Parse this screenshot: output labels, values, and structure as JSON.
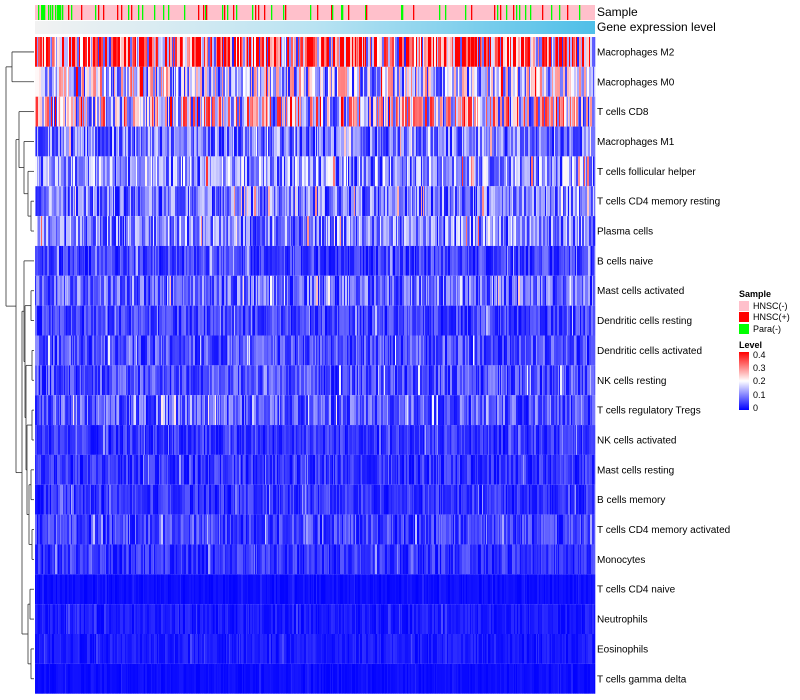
{
  "chart_data": {
    "type": "heatmap",
    "title": "",
    "annotation_tracks": [
      {
        "name": "Sample",
        "levels": [
          "HNSC(-)",
          "HNSC(+)",
          "Para(-)"
        ],
        "dominant": "HNSC(-)"
      },
      {
        "name": "Gene expression level",
        "gradient": "low-to-high"
      }
    ],
    "rows": [
      "Macrophages M2",
      "Macrophages M0",
      "T cells CD8",
      "Macrophages M1",
      "T cells follicular helper",
      "T cells CD4 memory resting",
      "Plasma cells",
      "B cells naive",
      "Mast cells activated",
      "Dendritic cells resting",
      "Dendritic cells activated",
      "NK cells resting",
      "T cells regulatory  Tregs",
      "NK cells activated",
      "Mast cells resting",
      "B cells memory",
      "T cells CD4 memory activated",
      "Monocytes",
      "T cells CD4 naive",
      "Neutrophils",
      "Eosinophils",
      "T cells gamma delta"
    ],
    "row_mean_levels": [
      0.28,
      0.16,
      0.2,
      0.09,
      0.11,
      0.09,
      0.1,
      0.05,
      0.08,
      0.05,
      0.06,
      0.06,
      0.07,
      0.04,
      0.04,
      0.04,
      0.05,
      0.04,
      0.01,
      0.02,
      0.02,
      0.01
    ],
    "column_count": 560,
    "color_scale": {
      "name": "Level",
      "min": 0,
      "max": 0.4,
      "ticks": [
        "0.4",
        "0.3",
        "0.2",
        "0.1",
        "0"
      ],
      "low_color": "#0000FF",
      "mid_color": "#FFFFFF",
      "high_color": "#FF0000"
    },
    "legend": {
      "sample_title": "Sample",
      "sample_entries": [
        {
          "label": "HNSC(-)",
          "color": "#FFC0CB"
        },
        {
          "label": "HNSC(+)",
          "color": "#FF0000"
        },
        {
          "label": "Para(-)",
          "color": "#00FF00"
        }
      ],
      "level_title": "Level",
      "placement": "right"
    },
    "dendrogram": "rows"
  }
}
